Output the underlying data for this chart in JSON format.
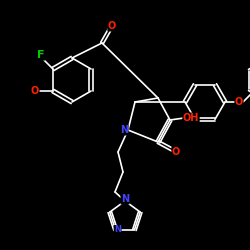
{
  "background": "#000000",
  "bond_color": "#ffffff",
  "atom_colors": {
    "F": "#00cc00",
    "O": "#ff2200",
    "N": "#4444ff",
    "C": "#ffffff",
    "H": "#ffffff"
  },
  "font_size": 7,
  "line_width": 1.2
}
